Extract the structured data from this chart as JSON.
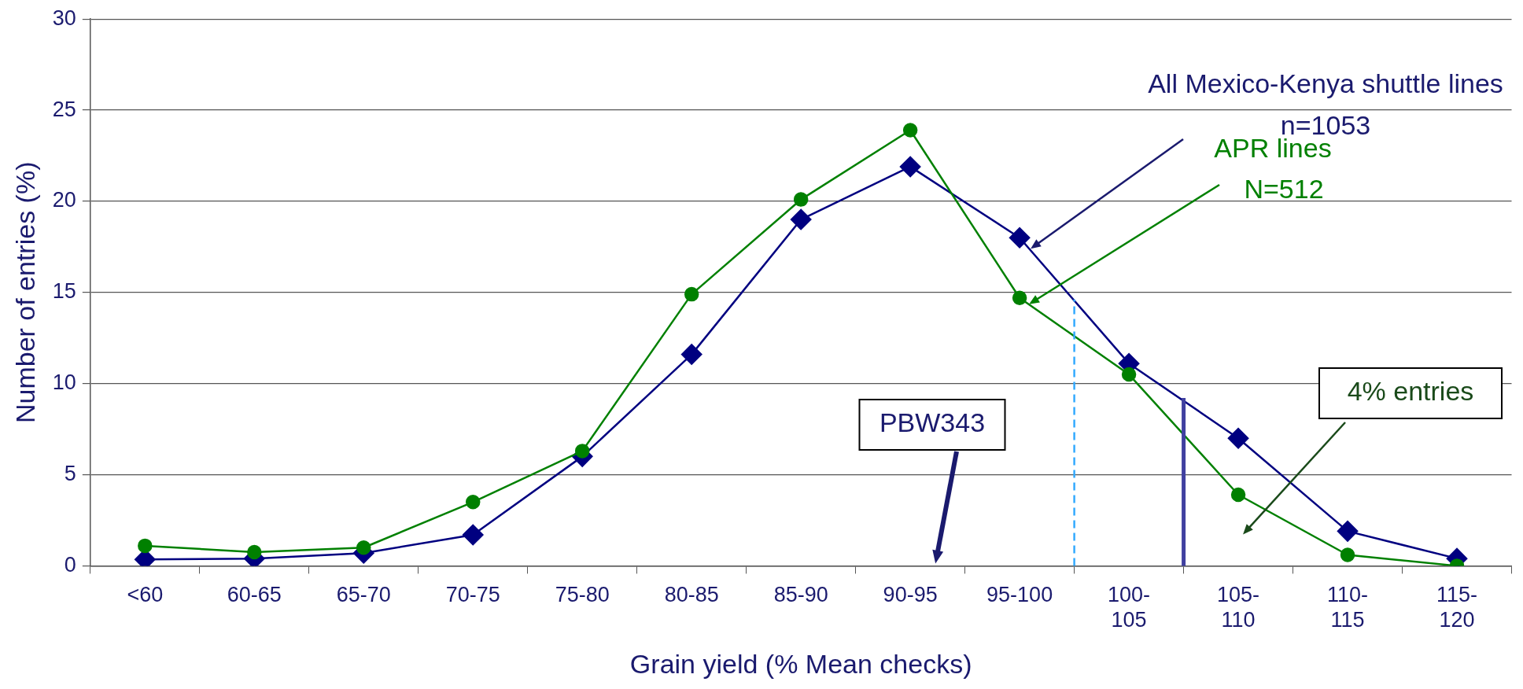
{
  "chart_data": {
    "type": "line",
    "xlabel": "Grain yield (% Mean checks)",
    "ylabel": "Number of entries (%)",
    "categories": [
      "<60",
      "60-65",
      "65-70",
      "70-75",
      "75-80",
      "80-85",
      "85-90",
      "90-95",
      "95-100",
      "100-105",
      "105-110",
      "110-115",
      "115-120"
    ],
    "series": [
      {
        "color": "#000080",
        "marker": "diamond",
        "values": [
          0.35,
          0.4,
          0.7,
          1.7,
          6.0,
          11.6,
          19.0,
          21.9,
          18.0,
          11.1,
          7.0,
          1.9,
          0.4
        ]
      },
      {
        "color": "#008000",
        "marker": "circle",
        "values": [
          1.1,
          0.75,
          1.0,
          3.5,
          6.3,
          14.9,
          20.1,
          23.9,
          14.7,
          10.5,
          3.9,
          0.6,
          0.0
        ]
      }
    ],
    "ylim": [
      0,
      30
    ],
    "yticks": [
      0,
      5,
      10,
      15,
      20,
      25,
      30
    ],
    "grid": "y",
    "legend": false,
    "annotations": [
      "All Mexico-Kenya shuttle lines\nn=1053",
      "APR lines\nN=512",
      "PBW343",
      "4% entries"
    ]
  }
}
